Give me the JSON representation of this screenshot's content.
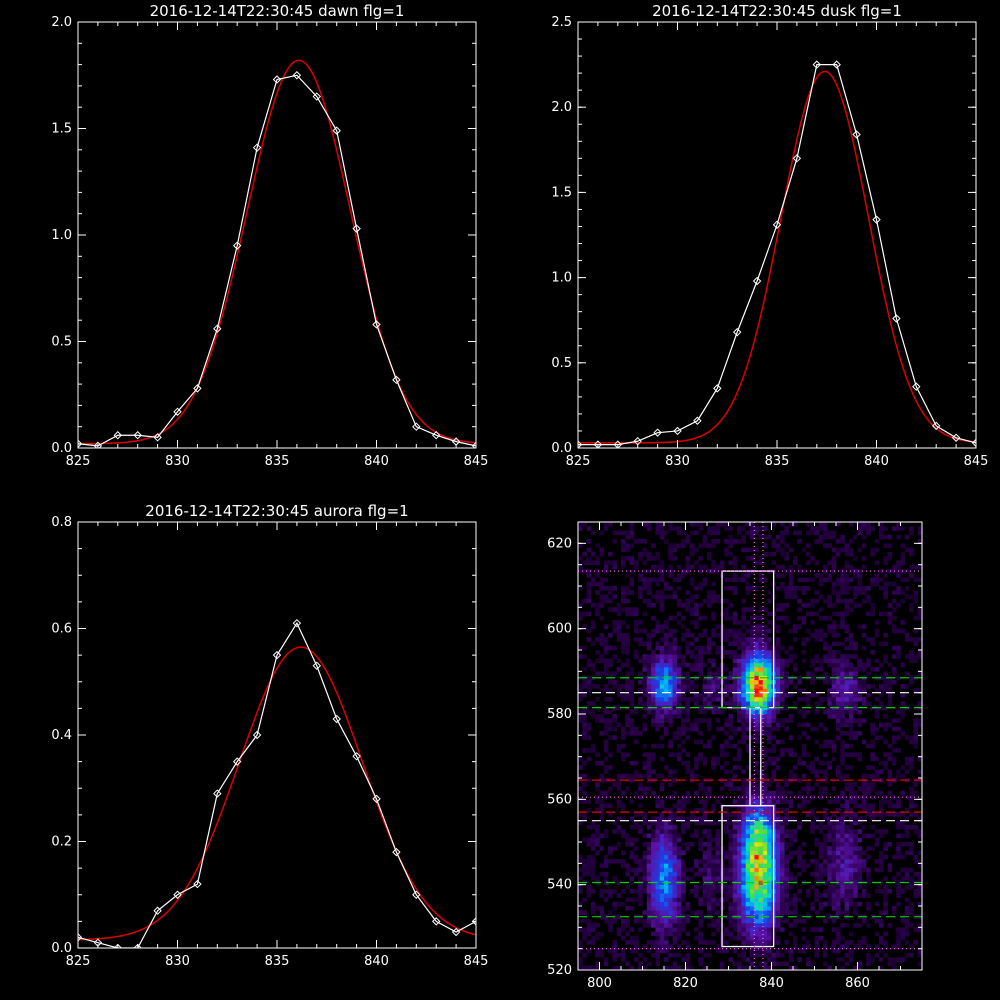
{
  "chart_data": [
    {
      "type": "line",
      "title": "2016-12-14T22:30:45 dawn flg=1",
      "xlim": [
        825,
        845
      ],
      "ylim": [
        0,
        2.0
      ],
      "xticks": [
        "825",
        "830",
        "835",
        "840",
        "845"
      ],
      "yticks": [
        "0.0",
        "0.5",
        "1.0",
        "1.5",
        "2.0"
      ],
      "series": [
        {
          "color": "#ffffff",
          "markers": "diamond",
          "x": [
            825,
            826,
            827,
            828,
            829,
            830,
            831,
            832,
            833,
            834,
            835,
            836,
            837,
            838,
            839,
            840,
            841,
            842,
            843,
            844,
            845
          ],
          "y": [
            0.02,
            0.01,
            0.06,
            0.06,
            0.05,
            0.17,
            0.28,
            0.56,
            0.95,
            1.41,
            1.73,
            1.75,
            1.65,
            1.49,
            1.03,
            0.58,
            0.32,
            0.1,
            0.06,
            0.03,
            0.01
          ]
        },
        {
          "color": "#dd0000",
          "fit": "gaussian",
          "amplitude": 1.8,
          "center": 836.1,
          "sigma": 2.6,
          "offset": 0.02
        }
      ]
    },
    {
      "type": "line",
      "title": "2016-12-14T22:30:45 dusk flg=1",
      "xlim": [
        825,
        845
      ],
      "ylim": [
        0,
        2.5
      ],
      "xticks": [
        "825",
        "830",
        "835",
        "840",
        "845"
      ],
      "yticks": [
        "0.0",
        "0.5",
        "1.0",
        "1.5",
        "2.0",
        "2.5"
      ],
      "series": [
        {
          "color": "#ffffff",
          "markers": "diamond",
          "x": [
            825,
            826,
            827,
            828,
            829,
            830,
            831,
            832,
            833,
            834,
            835,
            836,
            837,
            838,
            839,
            840,
            841,
            842,
            843,
            844,
            845
          ],
          "y": [
            0.02,
            0.02,
            0.02,
            0.04,
            0.09,
            0.1,
            0.16,
            0.35,
            0.68,
            0.98,
            1.31,
            1.7,
            2.25,
            2.25,
            1.84,
            1.34,
            0.76,
            0.36,
            0.13,
            0.06,
            0.03
          ]
        },
        {
          "color": "#dd0000",
          "fit": "gaussian",
          "amplitude": 2.18,
          "center": 837.4,
          "sigma": 2.2,
          "offset": 0.03
        }
      ]
    },
    {
      "type": "line",
      "title": "2016-12-14T22:30:45 aurora flg=1",
      "xlim": [
        825,
        845
      ],
      "ylim": [
        0,
        0.8
      ],
      "xticks": [
        "825",
        "830",
        "835",
        "840",
        "845"
      ],
      "yticks": [
        "0.0",
        "0.2",
        "0.4",
        "0.6",
        "0.8"
      ],
      "series": [
        {
          "color": "#ffffff",
          "markers": "diamond",
          "x": [
            825,
            826,
            827,
            828,
            829,
            830,
            831,
            832,
            833,
            834,
            835,
            836,
            837,
            838,
            839,
            840,
            841,
            842,
            843,
            844,
            845
          ],
          "y": [
            0.02,
            0.01,
            0.0,
            0.0,
            0.07,
            0.1,
            0.12,
            0.29,
            0.35,
            0.4,
            0.55,
            0.61,
            0.53,
            0.43,
            0.36,
            0.28,
            0.18,
            0.1,
            0.05,
            0.03,
            0.05
          ]
        },
        {
          "color": "#dd0000",
          "fit": "gaussian",
          "amplitude": 0.55,
          "center": 836.2,
          "sigma": 3.1,
          "offset": 0.015
        }
      ]
    },
    {
      "type": "heatmap",
      "title": "",
      "xlim": [
        795,
        875
      ],
      "ylim": [
        520,
        625
      ],
      "xticks": [
        "800",
        "820",
        "840",
        "860"
      ],
      "yticks": [
        "520",
        "540",
        "560",
        "580",
        "600",
        "620"
      ],
      "blobs": [
        {
          "x": 837,
          "y": 587,
          "sx": 2.5,
          "sy": 4.5,
          "amp": 1.0
        },
        {
          "x": 837,
          "y": 541,
          "sx": 2.8,
          "sy": 7.0,
          "amp": 0.75
        },
        {
          "x": 837,
          "y": 552,
          "sx": 2.5,
          "sy": 5.0,
          "amp": 0.45
        },
        {
          "x": 815,
          "y": 587,
          "sx": 2.2,
          "sy": 4.0,
          "amp": 0.45
        },
        {
          "x": 815,
          "y": 541,
          "sx": 2.2,
          "sy": 7.0,
          "amp": 0.4
        },
        {
          "x": 857,
          "y": 586,
          "sx": 2.5,
          "sy": 4.0,
          "amp": 0.16
        },
        {
          "x": 857,
          "y": 545,
          "sx": 2.5,
          "sy": 7.0,
          "amp": 0.14
        },
        {
          "x": 826,
          "y": 586,
          "sx": 2.0,
          "sy": 4.0,
          "amp": 0.08
        },
        {
          "x": 826,
          "y": 542,
          "sx": 2.0,
          "sy": 6.0,
          "amp": 0.08
        }
      ],
      "boxes": [
        {
          "x0": 828.5,
          "x1": 840.5,
          "y0": 581.5,
          "y1": 613.5,
          "color": "#ffffff"
        },
        {
          "x0": 828.5,
          "x1": 840.5,
          "y0": 525.5,
          "y1": 558.5,
          "color": "#ffffff"
        },
        {
          "x0": 835.0,
          "x1": 837.5,
          "y0": 558.5,
          "y1": 581.5,
          "color": "#ffffff"
        }
      ],
      "hlines": [
        {
          "y": 588.5,
          "color": "#00cc00",
          "style": "dashed"
        },
        {
          "y": 585.0,
          "color": "#ffffff",
          "style": "dashed"
        },
        {
          "y": 581.5,
          "color": "#00cc00",
          "style": "dashed"
        },
        {
          "y": 564.5,
          "color": "#dd0000",
          "style": "dashed"
        },
        {
          "y": 557.0,
          "color": "#dd0000",
          "style": "dashed"
        },
        {
          "y": 555.0,
          "color": "#ffffff",
          "style": "dashed"
        },
        {
          "y": 540.5,
          "color": "#00cc00",
          "style": "dashed"
        },
        {
          "y": 532.5,
          "color": "#00cc00",
          "style": "dashed"
        },
        {
          "y": 613.5,
          "color": "#ff66ff",
          "style": "dotted"
        },
        {
          "y": 525.0,
          "color": "#ff66ff",
          "style": "dotted"
        },
        {
          "y": 560.5,
          "color": "#ff66ff",
          "style": "dotted"
        }
      ],
      "vlines": [
        {
          "x": 836.0,
          "color": "#ff66ff",
          "style": "dotted"
        },
        {
          "x": 838.0,
          "color": "#ff66ff",
          "style": "dotted"
        }
      ],
      "marker": {
        "x": 837.5,
        "y": 586.0,
        "color": "#ff2200"
      }
    }
  ]
}
